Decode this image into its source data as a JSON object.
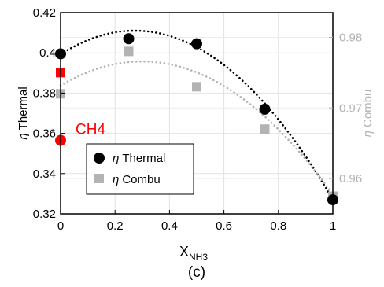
{
  "chart_data": {
    "type": "scatter",
    "x_axis": {
      "label": "X",
      "label_subscript": "NH3",
      "range": [
        0,
        1
      ],
      "ticks": [
        0,
        0.2,
        0.4,
        0.6,
        0.8,
        1
      ],
      "tick_labels": [
        "0",
        "0.2",
        "0.4",
        "0.6",
        "0.8",
        "1"
      ]
    },
    "y_left": {
      "label_symbol": "η",
      "label_text": "Thermal",
      "range": [
        0.32,
        0.42
      ],
      "ticks": [
        0.32,
        0.34,
        0.36,
        0.38,
        0.4,
        0.42
      ],
      "tick_labels": [
        "0.32",
        "0.34",
        "0.36",
        "0.38",
        "0.4",
        "0.42"
      ]
    },
    "y_right": {
      "label_symbol": "η",
      "label_text": "Combu",
      "range": [
        0.955,
        0.9835
      ],
      "ticks": [
        0.96,
        0.97,
        0.98
      ],
      "tick_labels": [
        "0.96",
        "0.97",
        "0.98"
      ]
    },
    "grid": true,
    "series": [
      {
        "name": "Thermal",
        "axis": "left",
        "marker": "circle",
        "color": "#000000",
        "x": [
          0,
          0.25,
          0.5,
          0.75,
          1
        ],
        "y": [
          0.3995,
          0.407,
          0.4045,
          0.372,
          0.327
        ]
      },
      {
        "name": "Combu",
        "axis": "right",
        "marker": "square",
        "color": "#b3b3b3",
        "x": [
          0,
          0.25,
          0.5,
          0.75,
          1
        ],
        "y": [
          0.972,
          0.978,
          0.973,
          0.967,
          0.9575
        ]
      }
    ],
    "fits": [
      {
        "axis": "left",
        "color": "#000000",
        "style": "dotted",
        "coeffs": [
          0.39927,
          0.08627,
          -0.15845
        ]
      },
      {
        "axis": "right",
        "color": "#b3b3b3",
        "style": "dotted",
        "coeffs": [
          0.97316,
          0.02289,
          -0.03831
        ]
      }
    ],
    "highlights": [
      {
        "marker": "circle",
        "color": "#ff0000",
        "axis": "left",
        "x": 0,
        "y": 0.3565
      },
      {
        "marker": "square",
        "color": "#ff0000",
        "axis": "right",
        "x": 0,
        "y": 0.975
      }
    ],
    "annotation": {
      "text": "CH4",
      "color": "#ff0000"
    },
    "legend": {
      "placement": "lower-left",
      "entries": [
        {
          "symbol": "η",
          "text": "Thermal",
          "marker": "circle",
          "color": "#000000"
        },
        {
          "symbol": "η",
          "text": "Combu",
          "marker": "square",
          "color": "#b3b3b3"
        }
      ]
    },
    "caption": "(c)"
  }
}
